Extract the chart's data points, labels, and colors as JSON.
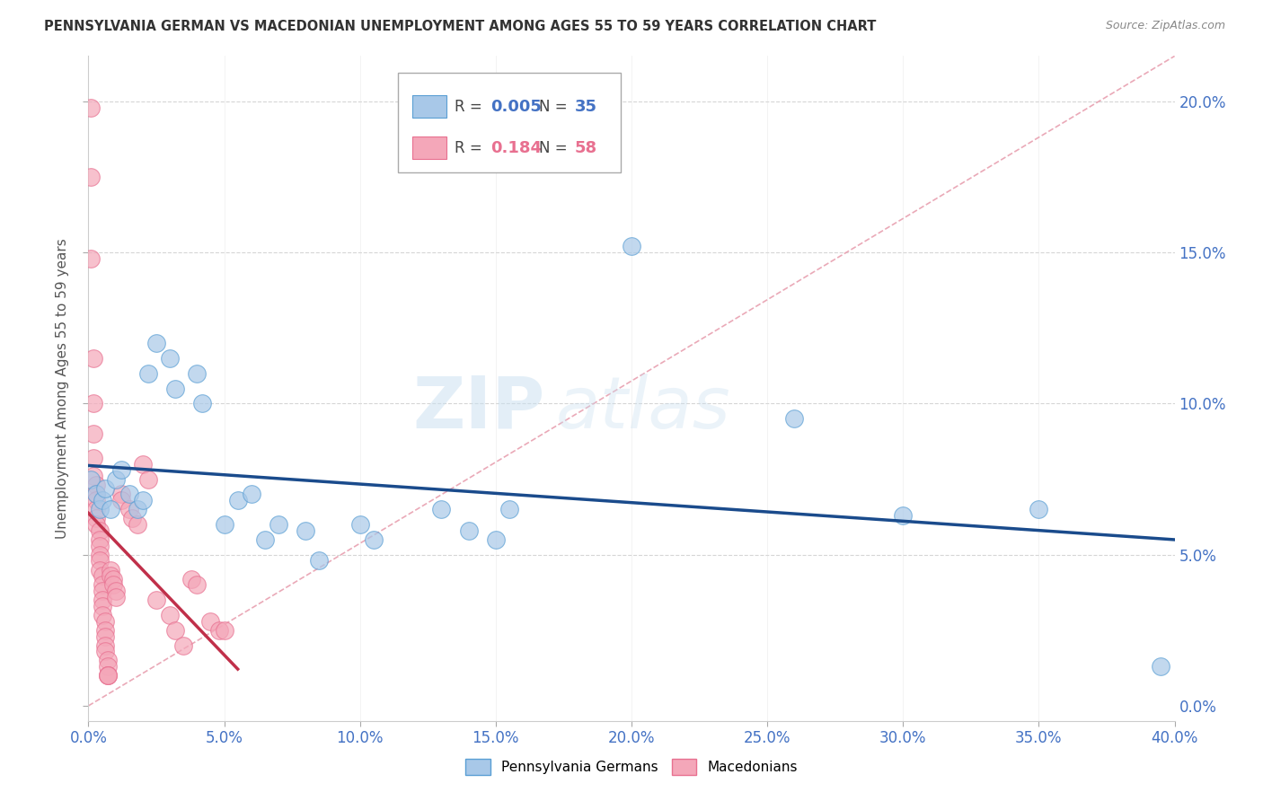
{
  "title": "PENNSYLVANIA GERMAN VS MACEDONIAN UNEMPLOYMENT AMONG AGES 55 TO 59 YEARS CORRELATION CHART",
  "source": "Source: ZipAtlas.com",
  "xlim": [
    0,
    0.4
  ],
  "ylim": [
    -0.005,
    0.215
  ],
  "ylabel": "Unemployment Among Ages 55 to 59 years",
  "watermark_zip": "ZIP",
  "watermark_atlas": "atlas",
  "blue_color": "#a8c8e8",
  "blue_edge_color": "#5a9fd4",
  "pink_color": "#f4a7b9",
  "pink_edge_color": "#e87090",
  "blue_line_color": "#1a4b8c",
  "pink_line_color": "#c0304a",
  "diag_line_color": "#e8a0b0",
  "blue_dots": [
    [
      0.001,
      0.075
    ],
    [
      0.003,
      0.07
    ],
    [
      0.004,
      0.065
    ],
    [
      0.005,
      0.068
    ],
    [
      0.006,
      0.072
    ],
    [
      0.008,
      0.065
    ],
    [
      0.01,
      0.075
    ],
    [
      0.012,
      0.078
    ],
    [
      0.015,
      0.07
    ],
    [
      0.018,
      0.065
    ],
    [
      0.02,
      0.068
    ],
    [
      0.022,
      0.11
    ],
    [
      0.025,
      0.12
    ],
    [
      0.03,
      0.115
    ],
    [
      0.032,
      0.105
    ],
    [
      0.04,
      0.11
    ],
    [
      0.042,
      0.1
    ],
    [
      0.05,
      0.06
    ],
    [
      0.055,
      0.068
    ],
    [
      0.06,
      0.07
    ],
    [
      0.065,
      0.055
    ],
    [
      0.07,
      0.06
    ],
    [
      0.08,
      0.058
    ],
    [
      0.085,
      0.048
    ],
    [
      0.1,
      0.06
    ],
    [
      0.105,
      0.055
    ],
    [
      0.13,
      0.065
    ],
    [
      0.14,
      0.058
    ],
    [
      0.15,
      0.055
    ],
    [
      0.155,
      0.065
    ],
    [
      0.2,
      0.152
    ],
    [
      0.26,
      0.095
    ],
    [
      0.3,
      0.063
    ],
    [
      0.35,
      0.065
    ],
    [
      0.395,
      0.013
    ]
  ],
  "pink_dots": [
    [
      0.001,
      0.198
    ],
    [
      0.001,
      0.175
    ],
    [
      0.001,
      0.148
    ],
    [
      0.002,
      0.115
    ],
    [
      0.002,
      0.1
    ],
    [
      0.002,
      0.09
    ],
    [
      0.002,
      0.082
    ],
    [
      0.002,
      0.076
    ],
    [
      0.003,
      0.073
    ],
    [
      0.003,
      0.07
    ],
    [
      0.003,
      0.068
    ],
    [
      0.003,
      0.065
    ],
    [
      0.003,
      0.062
    ],
    [
      0.003,
      0.06
    ],
    [
      0.004,
      0.058
    ],
    [
      0.004,
      0.055
    ],
    [
      0.004,
      0.053
    ],
    [
      0.004,
      0.05
    ],
    [
      0.004,
      0.048
    ],
    [
      0.004,
      0.045
    ],
    [
      0.005,
      0.043
    ],
    [
      0.005,
      0.04
    ],
    [
      0.005,
      0.038
    ],
    [
      0.005,
      0.035
    ],
    [
      0.005,
      0.033
    ],
    [
      0.005,
      0.03
    ],
    [
      0.006,
      0.028
    ],
    [
      0.006,
      0.025
    ],
    [
      0.006,
      0.023
    ],
    [
      0.006,
      0.02
    ],
    [
      0.006,
      0.018
    ],
    [
      0.007,
      0.015
    ],
    [
      0.007,
      0.013
    ],
    [
      0.007,
      0.01
    ],
    [
      0.007,
      0.01
    ],
    [
      0.007,
      0.01
    ],
    [
      0.008,
      0.045
    ],
    [
      0.008,
      0.043
    ],
    [
      0.009,
      0.042
    ],
    [
      0.009,
      0.04
    ],
    [
      0.01,
      0.038
    ],
    [
      0.01,
      0.036
    ],
    [
      0.012,
      0.07
    ],
    [
      0.012,
      0.068
    ],
    [
      0.015,
      0.065
    ],
    [
      0.016,
      0.062
    ],
    [
      0.018,
      0.06
    ],
    [
      0.02,
      0.08
    ],
    [
      0.022,
      0.075
    ],
    [
      0.025,
      0.035
    ],
    [
      0.03,
      0.03
    ],
    [
      0.032,
      0.025
    ],
    [
      0.035,
      0.02
    ],
    [
      0.038,
      0.042
    ],
    [
      0.04,
      0.04
    ],
    [
      0.045,
      0.028
    ],
    [
      0.048,
      0.025
    ],
    [
      0.05,
      0.025
    ]
  ]
}
